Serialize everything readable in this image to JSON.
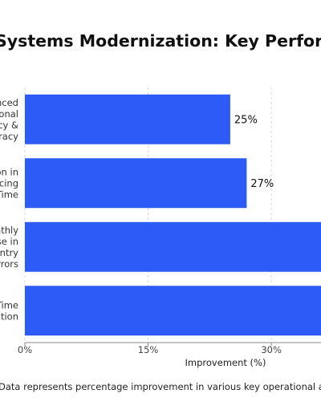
{
  "chart_data": {
    "type": "bar",
    "orientation": "horizontal",
    "title": "Systems Modernization: Key Performance",
    "categories": [
      [
        "Enhanced",
        "Operational",
        "Efficiency &",
        "Accuracy"
      ],
      [
        "Reduction in",
        "Invoicing",
        "Time"
      ],
      [
        "Monthly",
        "Decrease in",
        "Data Entry",
        "Errors"
      ],
      [
        "Time",
        "Reduction"
      ]
    ],
    "values": [
      25,
      27,
      null,
      null
    ],
    "data_labels": [
      "25%",
      "27%",
      "",
      ""
    ],
    "xlim": [
      0,
      38
    ],
    "x_ticks": [
      0,
      15,
      30
    ],
    "x_tick_labels": [
      "0%",
      "15%",
      "30%"
    ],
    "xlabel": "Improvement (%)",
    "grid": true,
    "bar_color": "#2d5bf5"
  },
  "footnote": "Data represents percentage improvement in various key operational areas"
}
